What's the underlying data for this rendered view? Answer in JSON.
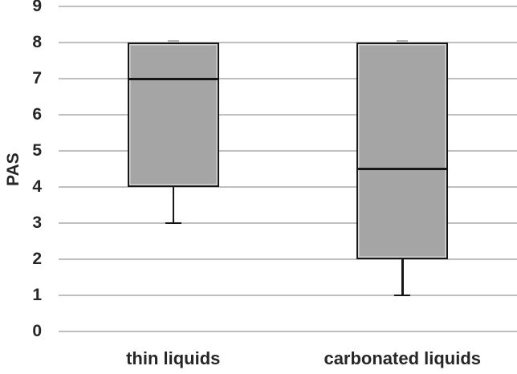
{
  "chart_data": {
    "type": "boxplot",
    "title": "",
    "xlabel": "",
    "ylabel": "PAS",
    "ylim": [
      0,
      9
    ],
    "yticks": [
      0,
      1,
      2,
      3,
      4,
      5,
      6,
      7,
      8,
      9
    ],
    "grid": true,
    "legend": false,
    "categories": [
      "thin liquids",
      "carbonated liquids"
    ],
    "series": [
      {
        "name": "thin liquids",
        "min": 3,
        "q1": 4,
        "median": 7,
        "q3": 8,
        "max": 8
      },
      {
        "name": "carbonated liquids",
        "min": 1,
        "q1": 2,
        "median": 4.5,
        "q3": 8,
        "max": 8
      }
    ],
    "colors": {
      "box_fill": "#a5a5a5",
      "box_border": "#161616",
      "whisker": "#161616",
      "median": "#161616",
      "gridline": "#bfbfbf",
      "text": "#262626",
      "background": "#ffffff"
    }
  }
}
